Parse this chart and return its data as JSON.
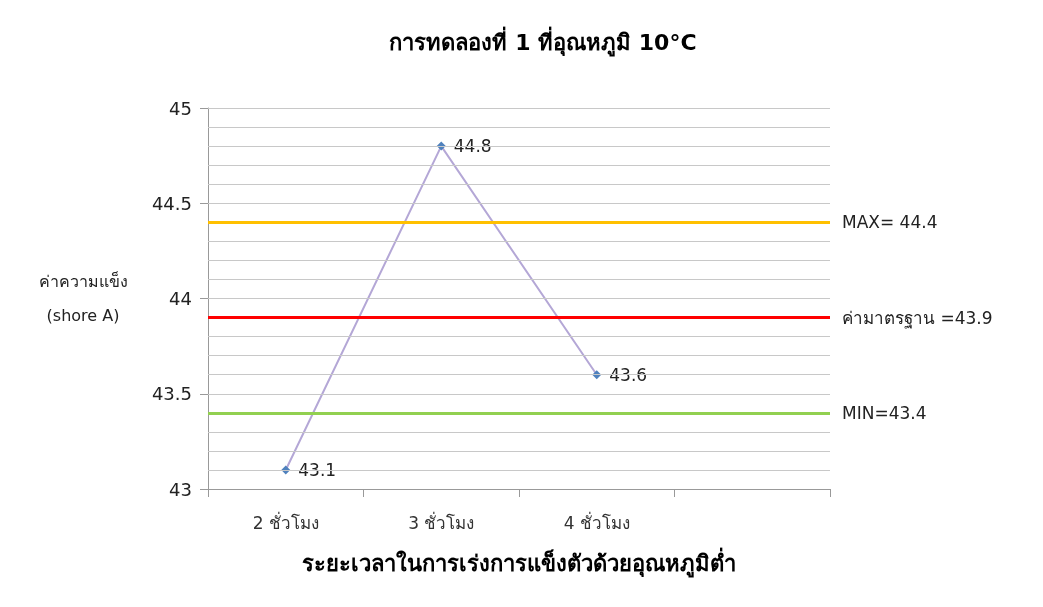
{
  "chart_data": {
    "type": "line",
    "title": "การทดลองที่ 1 ที่อุณหภูมิ 10°C",
    "xlabel": "ระยะเวลาในการเร่งการแข็งตัวด้วยอุณหภูมิต่ำ",
    "ylabel": "ค่าความแข็ง\n(shore A)",
    "categories": [
      "2 ชั่วโมง",
      "3 ชั่วโมง",
      "4 ชั่วโมง",
      null
    ],
    "series": [
      {
        "color": "#b4a7d6",
        "values": [
          43.1,
          44.8,
          43.6,
          null
        ]
      }
    ],
    "ylim": [
      43,
      45
    ],
    "yticks": [
      43,
      {
        "value": 43.1,
        "label": null
      },
      {
        "value": 43.2,
        "label": null
      },
      {
        "value": 43.3,
        "label": null
      },
      {
        "value": 43.4,
        "label": null
      },
      43.5,
      {
        "value": 43.6,
        "label": null
      },
      {
        "value": 43.7,
        "label": null
      },
      {
        "value": 43.8,
        "label": null
      },
      {
        "value": 43.9,
        "label": null
      },
      44,
      {
        "value": 44.1,
        "label": null
      },
      {
        "value": 44.2,
        "label": null
      },
      {
        "value": 44.3,
        "label": null
      },
      {
        "value": 44.4,
        "label": null
      },
      44.5,
      {
        "value": 44.6,
        "label": null
      },
      {
        "value": 44.7,
        "label": null
      },
      {
        "value": 44.8,
        "label": null
      },
      {
        "value": 44.9,
        "label": null
      },
      45
    ],
    "ref_lines": [
      {
        "axis": "y",
        "value": 44.4,
        "label": "MAX= 44.4",
        "color": "#ffc000"
      },
      {
        "axis": "y",
        "value": 43.9,
        "label": "ค่ามาตรฐาน =43.9",
        "color": "#ff0000"
      },
      {
        "axis": "y",
        "value": 43.4,
        "label": "MIN=43.4",
        "color": "#92d050"
      }
    ],
    "grid": "y",
    "marker": "diamond",
    "data_labels": true
  }
}
